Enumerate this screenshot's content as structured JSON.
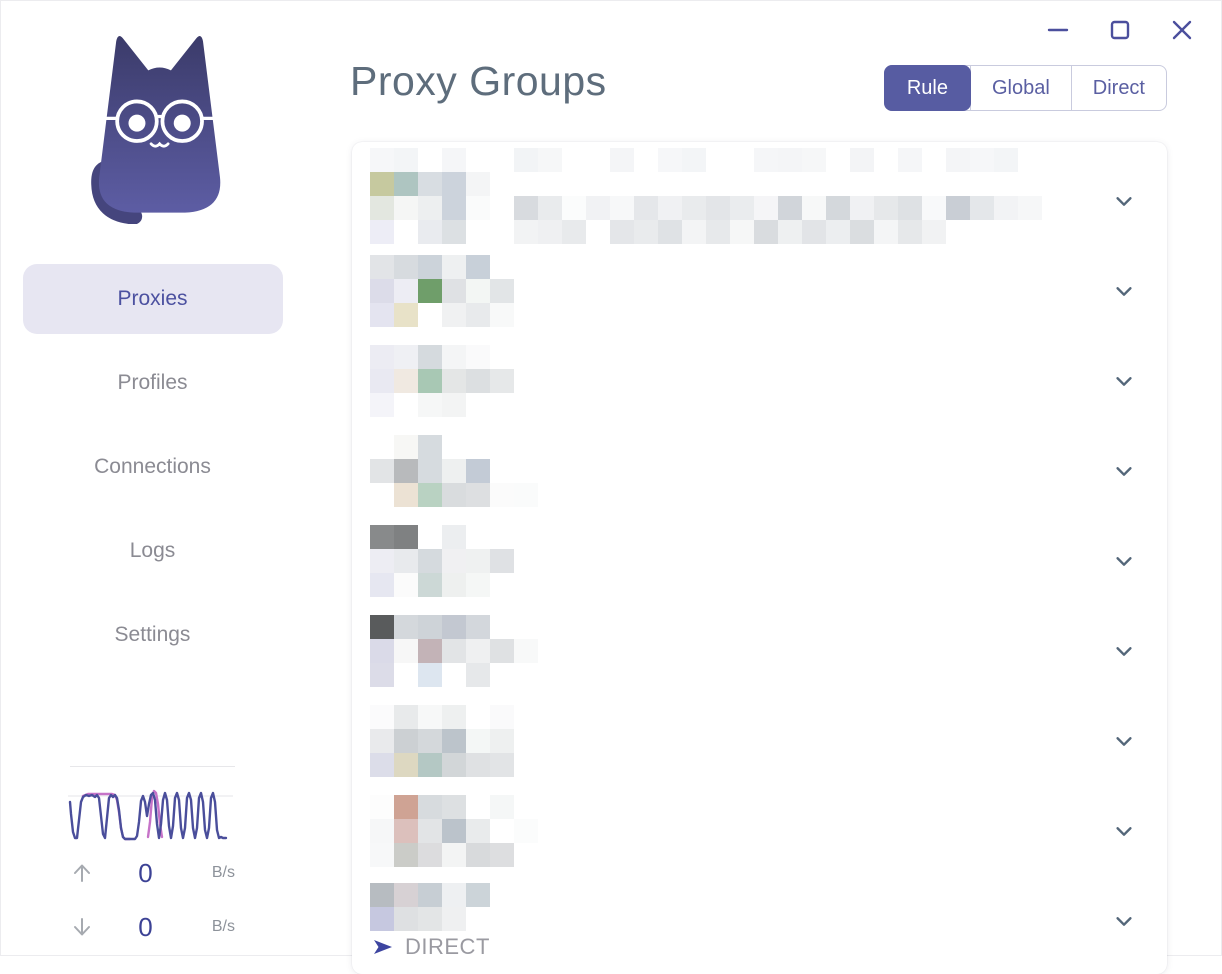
{
  "window": {
    "controls": [
      "minimize",
      "maximize",
      "close"
    ]
  },
  "sidebar": {
    "nav_items": [
      {
        "label": "Proxies",
        "active": true
      },
      {
        "label": "Profiles",
        "active": false
      },
      {
        "label": "Connections",
        "active": false
      },
      {
        "label": "Logs",
        "active": false
      },
      {
        "label": "Settings",
        "active": false
      }
    ],
    "traffic": {
      "up": {
        "value": "0",
        "unit": "B/s"
      },
      "down": {
        "value": "0",
        "unit": "B/s"
      }
    }
  },
  "header": {
    "title": "Proxy Groups",
    "mode_toggle": [
      {
        "label": "Rule",
        "active": true
      },
      {
        "label": "Global",
        "active": false
      },
      {
        "label": "Direct",
        "active": false
      }
    ]
  },
  "proxy_groups": {
    "direct_label": "DIRECT",
    "rows": [
      {
        "redacted": true,
        "direct": false,
        "mosaic": [
          [
            "#f6f7f9",
            "#f3f5f7",
            "",
            "#f5f6f8",
            "",
            "",
            "#f2f4f6",
            "#f6f7f8",
            "",
            "",
            "#f4f5f7",
            "",
            "#f6f7f9",
            "#f3f5f7",
            "",
            "",
            "#f5f6f8",
            "#f4f5f7",
            "#f6f7f8",
            "",
            "#f3f4f6",
            "",
            "#f5f6f8",
            "",
            "#f4f5f7",
            "#f6f7f9",
            "#f3f5f7",
            ""
          ],
          [
            "#c6c99f",
            "#aec5c1",
            "#d8dde2",
            "#ccd3dc",
            "#f4f5f6"
          ],
          [
            "#e3e7e0",
            "#f5f6f5",
            "#edeff0",
            "#ccd3dc",
            "#fafbfb",
            "",
            "#d8dbdf",
            "#e9ebed",
            "#fbfcfc",
            "#f1f2f4",
            "#f7f8f9",
            "#e5e7ea",
            "#f0f1f3",
            "#e9ebed",
            "#e3e5e8",
            "#eaecee",
            "#f5f5f7",
            "#d1d5da",
            "#f7f8f8",
            "#d4d8dc",
            "#f0f1f3",
            "#e6e8ea",
            "#dee1e4",
            "#f8f9fa",
            "#c9ced5",
            "#e4e7ea",
            "#f2f3f5",
            "#f6f7f8"
          ],
          [
            "#ededf6",
            "#ffffff",
            "#e9ebef",
            "#dce0e3",
            "",
            "",
            "#f2f3f4",
            "#eff0f2",
            "#e8eaec",
            "",
            "#e4e6e9",
            "#e9ebed",
            "#dfe2e5",
            "#f3f4f5",
            "#e7e9eb",
            "#f6f7f7",
            "#d9dcdf",
            "#eef0f1",
            "#e2e4e7",
            "#eceef0",
            "#dadde0",
            "#f4f5f6",
            "#e6e8ea",
            "#f1f2f3"
          ]
        ]
      },
      {
        "redacted": true,
        "direct": false,
        "mosaic": [
          [
            "#e2e4e7",
            "#d7dbdf",
            "#ccd3da",
            "#eef0f1",
            "#c8d0d9"
          ],
          [
            "#dcdce9",
            "#ededf4",
            "#6f9e6a",
            "#dfe1e4",
            "#f3f6f4",
            "#e2e5e7"
          ],
          [
            "#e4e4f0",
            "#e8e2c8",
            "#ffffff",
            "#f0f1f2",
            "#e8eaec",
            "#f8f9f9"
          ]
        ]
      },
      {
        "redacted": true,
        "direct": false,
        "mosaic": [
          [
            "#ececf3",
            "#eff0f4",
            "#d5dade",
            "#f4f5f6",
            "#fafafb"
          ],
          [
            "#e9e9f2",
            "#f0e9e1",
            "#a8c8b4",
            "#e4e6e6",
            "#dcdfe1",
            "#e6e8e9"
          ],
          [
            "#f4f4f9",
            "#ffffff",
            "#f6f7f7",
            "#f3f4f4"
          ]
        ]
      },
      {
        "redacted": true,
        "direct": false,
        "mosaic": [
          [
            "",
            "#f7f7f5",
            "#d6dbdf"
          ],
          [
            "#e2e4e6",
            "#b8babc",
            "#d6dbdf",
            "#eef0f0",
            "#c3cbd6"
          ],
          [
            "#ffffff",
            "#ece2d4",
            "#b9d2c2",
            "#d9dcde",
            "#dddfe1",
            "#fbfbfb",
            "#fafbfb"
          ]
        ]
      },
      {
        "redacted": true,
        "direct": false,
        "mosaic": [
          [
            "#888a8b",
            "#7f8182",
            "",
            "#eceef0"
          ],
          [
            "#ededf3",
            "#e8eaed",
            "#d5dade",
            "#f0f0f2",
            "#eff1f1",
            "#dfe1e4"
          ],
          [
            "#e6e7f1",
            "#fbfbfb",
            "#ccd8d6",
            "#eef0ef",
            "#f5f7f6"
          ]
        ]
      },
      {
        "redacted": true,
        "direct": false,
        "mosaic": [
          [
            "#595b5c",
            "#d4d8dc",
            "#ced3d8",
            "#c3c8d1",
            "#d3d7dc"
          ],
          [
            "#dadae8",
            "#f7f7f7",
            "#c3b3b7",
            "#e2e4e6",
            "#eff0f1",
            "#dfe1e3",
            "#f8f9f9"
          ],
          [
            "#dcdce8",
            "#ffffff",
            "#dde6f0",
            "#ffffff",
            "#e6e8ea"
          ]
        ]
      },
      {
        "redacted": true,
        "direct": false,
        "mosaic": [
          [
            "#fbfbfc",
            "#e8eaeb",
            "#f7f8f8",
            "#eef0f0",
            "",
            "#fafafb"
          ],
          [
            "#e9eaec",
            "#ccd0d3",
            "#d4d8db",
            "#bcc4cb",
            "#f4f7f6",
            "#eef0f0"
          ],
          [
            "#dcdde9",
            "#ddd8c1",
            "#b4c8c4",
            "#d2d6d8",
            "#dfe1e3",
            "#e2e4e6"
          ]
        ]
      },
      {
        "redacted": true,
        "direct": false,
        "mosaic": [
          [
            "#fdfdfd",
            "#cfa394",
            "#d7dbde",
            "#dde0e2",
            "",
            "#f5f7f7"
          ],
          [
            "#f6f7f8",
            "#dcc0bc",
            "#e2e4e6",
            "#bbc3cb",
            "#e9ebec",
            "",
            "#fbfcfc"
          ],
          [
            "#f7f8f9",
            "#cbccc8",
            "#dcdcde",
            "#f3f4f4",
            "#d8dadc",
            "#dddee0"
          ]
        ]
      },
      {
        "redacted": true,
        "direct": true,
        "mosaic": [
          [
            "#b7bcc1",
            "#d7d1d4",
            "#c7ced4",
            "#eef0f2",
            "#ccd4d9"
          ],
          [
            "#c6c8e0",
            "#dee0e2",
            "#e3e5e6",
            "#eff0f1"
          ]
        ]
      }
    ]
  },
  "colors": {
    "accent": "#575ca2",
    "title": "#5e6d7c",
    "chevron": "#54677a",
    "nav_active_bg": "#e7e6f2",
    "nav_active_text": "#4c51a0",
    "graph_up": "#4a4e9b",
    "graph_down": "#c673c8",
    "window_control": "#4b4f9d"
  }
}
